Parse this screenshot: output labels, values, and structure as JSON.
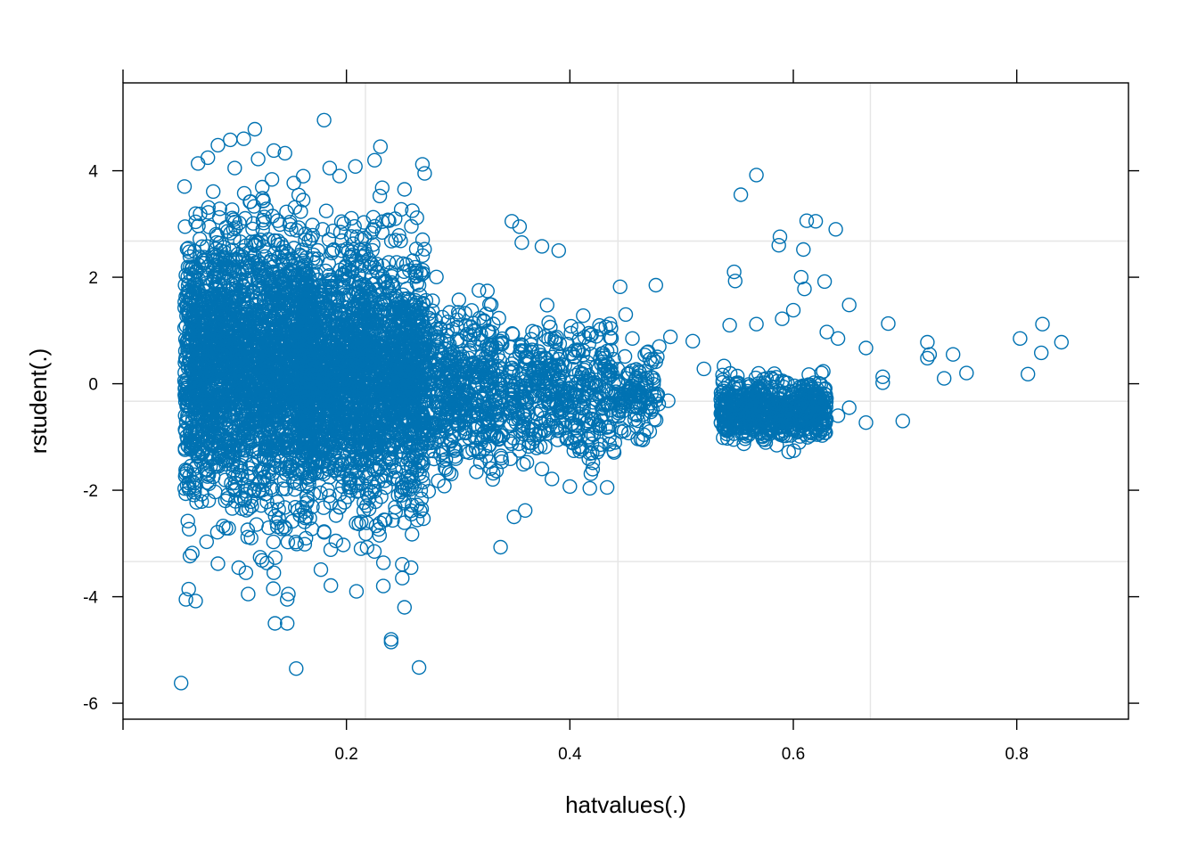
{
  "chart_data": {
    "type": "scatter",
    "title": "",
    "xlabel": "hatvalues(.)",
    "ylabel": "rstudent(.)",
    "xlim": [
      0.0,
      0.9
    ],
    "ylim": [
      -6.3,
      5.65
    ],
    "x_ticks": [
      0.2,
      0.4,
      0.6,
      0.8
    ],
    "x_tick_labels": [
      "0.2",
      "0.4",
      "0.6",
      "0.8"
    ],
    "y_ticks": [
      -6,
      -4,
      -2,
      0,
      2,
      4
    ],
    "y_tick_labels": [
      "-6",
      "-4",
      "-2",
      "0",
      "2",
      "4"
    ],
    "x_reference_lines": [
      0.217,
      0.443,
      0.669
    ],
    "y_reference_lines": [
      -3.34,
      -0.33,
      2.68
    ],
    "grid": false,
    "legend": "none",
    "marker": "open-circle",
    "colors": {
      "points": "#0072B2",
      "reference_lines": "#e6e6e6",
      "frame": "#000000"
    },
    "dense_clusters": [
      {
        "n": 2400,
        "x_range": [
          0.055,
          0.17
        ],
        "y_mean": 0.3,
        "y_sd": 1.25
      },
      {
        "n": 2200,
        "x_range": [
          0.16,
          0.27
        ],
        "y_mean": 0.1,
        "y_sd": 1.15
      },
      {
        "n": 500,
        "x_range": [
          0.27,
          0.34
        ],
        "y_mean": -0.1,
        "y_sd": 0.75
      },
      {
        "n": 450,
        "x_range": [
          0.345,
          0.44
        ],
        "y_mean": -0.2,
        "y_sd": 0.6
      },
      {
        "n": 120,
        "x_range": [
          0.44,
          0.48
        ],
        "y_mean": -0.2,
        "y_sd": 0.35
      },
      {
        "n": 650,
        "x_range": [
          0.535,
          0.63
        ],
        "y_mean": -0.5,
        "y_sd": 0.28
      }
    ],
    "points": [
      {
        "x": 0.052,
        "y": -5.62
      },
      {
        "x": 0.065,
        "y": -4.08
      },
      {
        "x": 0.062,
        "y": -3.18
      },
      {
        "x": 0.085,
        "y": -3.38
      },
      {
        "x": 0.11,
        "y": -3.55
      },
      {
        "x": 0.112,
        "y": -3.95
      },
      {
        "x": 0.135,
        "y": -3.55
      },
      {
        "x": 0.148,
        "y": -3.95
      },
      {
        "x": 0.147,
        "y": -4.05
      },
      {
        "x": 0.136,
        "y": -4.5
      },
      {
        "x": 0.147,
        "y": -4.5
      },
      {
        "x": 0.155,
        "y": -5.35
      },
      {
        "x": 0.209,
        "y": -3.9
      },
      {
        "x": 0.233,
        "y": -3.8
      },
      {
        "x": 0.24,
        "y": -4.8
      },
      {
        "x": 0.24,
        "y": -4.85
      },
      {
        "x": 0.252,
        "y": -4.2
      },
      {
        "x": 0.265,
        "y": -5.33
      },
      {
        "x": 0.25,
        "y": -3.65
      },
      {
        "x": 0.225,
        "y": -3.15
      },
      {
        "x": 0.096,
        "y": 4.58
      },
      {
        "x": 0.118,
        "y": 4.78
      },
      {
        "x": 0.108,
        "y": 4.6
      },
      {
        "x": 0.085,
        "y": 4.48
      },
      {
        "x": 0.135,
        "y": 4.38
      },
      {
        "x": 0.145,
        "y": 4.33
      },
      {
        "x": 0.1,
        "y": 4.05
      },
      {
        "x": 0.18,
        "y": 4.95
      },
      {
        "x": 0.185,
        "y": 4.05
      },
      {
        "x": 0.208,
        "y": 4.08
      },
      {
        "x": 0.268,
        "y": 4.12
      },
      {
        "x": 0.27,
        "y": 3.95
      },
      {
        "x": 0.232,
        "y": 3.68
      },
      {
        "x": 0.252,
        "y": 3.65
      },
      {
        "x": 0.375,
        "y": 2.58
      },
      {
        "x": 0.355,
        "y": 2.95
      },
      {
        "x": 0.348,
        "y": 3.05
      },
      {
        "x": 0.357,
        "y": 2.65
      },
      {
        "x": 0.39,
        "y": 2.5
      },
      {
        "x": 0.445,
        "y": 1.82
      },
      {
        "x": 0.477,
        "y": 1.85
      },
      {
        "x": 0.45,
        "y": 1.3
      },
      {
        "x": 0.4,
        "y": -1.93
      },
      {
        "x": 0.375,
        "y": -1.6
      },
      {
        "x": 0.42,
        "y": -1.3
      },
      {
        "x": 0.338,
        "y": -3.07
      },
      {
        "x": 0.36,
        "y": -2.38
      },
      {
        "x": 0.35,
        "y": -2.5
      },
      {
        "x": 0.456,
        "y": 0.85
      },
      {
        "x": 0.48,
        "y": 0.7
      },
      {
        "x": 0.47,
        "y": 0.6
      },
      {
        "x": 0.49,
        "y": 0.88
      },
      {
        "x": 0.51,
        "y": 0.8
      },
      {
        "x": 0.52,
        "y": 0.28
      },
      {
        "x": 0.488,
        "y": -0.32
      },
      {
        "x": 0.472,
        "y": -0.45
      },
      {
        "x": 0.446,
        "y": -0.9
      },
      {
        "x": 0.567,
        "y": 3.92
      },
      {
        "x": 0.553,
        "y": 3.55
      },
      {
        "x": 0.612,
        "y": 3.06
      },
      {
        "x": 0.62,
        "y": 3.05
      },
      {
        "x": 0.638,
        "y": 2.9
      },
      {
        "x": 0.588,
        "y": 2.76
      },
      {
        "x": 0.587,
        "y": 2.6
      },
      {
        "x": 0.609,
        "y": 2.52
      },
      {
        "x": 0.547,
        "y": 2.1
      },
      {
        "x": 0.548,
        "y": 1.93
      },
      {
        "x": 0.607,
        "y": 2.0
      },
      {
        "x": 0.61,
        "y": 1.78
      },
      {
        "x": 0.628,
        "y": 1.92
      },
      {
        "x": 0.65,
        "y": 1.48
      },
      {
        "x": 0.6,
        "y": 1.38
      },
      {
        "x": 0.59,
        "y": 1.22
      },
      {
        "x": 0.567,
        "y": 1.12
      },
      {
        "x": 0.543,
        "y": 1.1
      },
      {
        "x": 0.685,
        "y": 1.13
      },
      {
        "x": 0.63,
        "y": 0.97
      },
      {
        "x": 0.64,
        "y": 0.85
      },
      {
        "x": 0.665,
        "y": 0.67
      },
      {
        "x": 0.698,
        "y": -0.7
      },
      {
        "x": 0.665,
        "y": -0.73
      },
      {
        "x": 0.65,
        "y": -0.45
      },
      {
        "x": 0.64,
        "y": -0.6
      },
      {
        "x": 0.628,
        "y": -0.85
      },
      {
        "x": 0.72,
        "y": 0.78
      },
      {
        "x": 0.722,
        "y": 0.55
      },
      {
        "x": 0.72,
        "y": 0.48
      },
      {
        "x": 0.743,
        "y": 0.55
      },
      {
        "x": 0.755,
        "y": 0.2
      },
      {
        "x": 0.735,
        "y": 0.1
      },
      {
        "x": 0.68,
        "y": 0.13
      },
      {
        "x": 0.68,
        "y": 0.02
      },
      {
        "x": 0.803,
        "y": 0.85
      },
      {
        "x": 0.823,
        "y": 1.12
      },
      {
        "x": 0.84,
        "y": 0.78
      },
      {
        "x": 0.822,
        "y": 0.58
      },
      {
        "x": 0.81,
        "y": 0.18
      }
    ]
  }
}
